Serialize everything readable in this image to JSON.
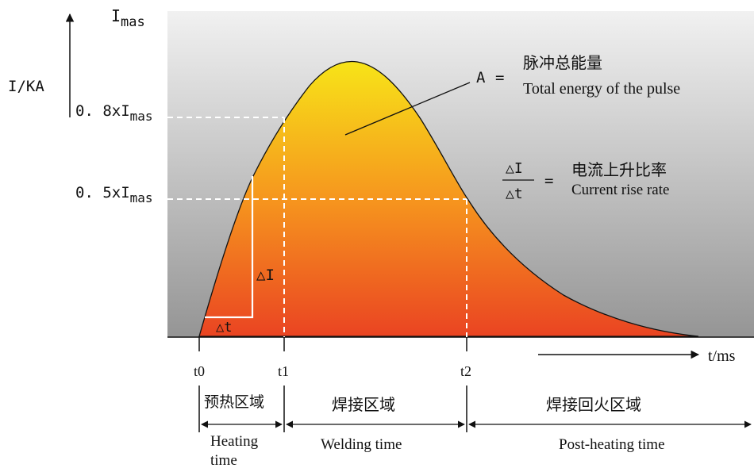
{
  "axes": {
    "y_label": "I/KA",
    "x_label": "t/ms",
    "peak_label_main": "I",
    "peak_label_sub": "mas"
  },
  "levels": [
    {
      "prefix": "0. 8xI",
      "sub": "mas"
    },
    {
      "prefix": "0. 5xI",
      "sub": "mas"
    }
  ],
  "time_marks": [
    "t0",
    "t1",
    "t2"
  ],
  "energy": {
    "symbol": "A",
    "equals": "=",
    "label_cn": "脉冲总能量",
    "label_en": "Total energy of the pulse"
  },
  "rise_rate": {
    "numerator": "△I",
    "denominator": "△t",
    "equals": "=",
    "label_cn": "电流上升比率",
    "label_en": "Current rise rate"
  },
  "deltas": {
    "delta_i": "△I",
    "delta_t": "△t"
  },
  "zones": [
    {
      "cn": "预热区域",
      "en_line1": "Heating",
      "en_line2": "time"
    },
    {
      "cn": "焊接区域",
      "en_line1": "Welding time"
    },
    {
      "cn": "焊接回火区域",
      "en_line1": "Post-heating time"
    }
  ],
  "colors": {
    "pulse_top": "#f7e418",
    "pulse_mid": "#f6961e",
    "pulse_bottom": "#ea4422",
    "bg_top": "#f1f1f1",
    "bg_bottom": "#959595"
  }
}
